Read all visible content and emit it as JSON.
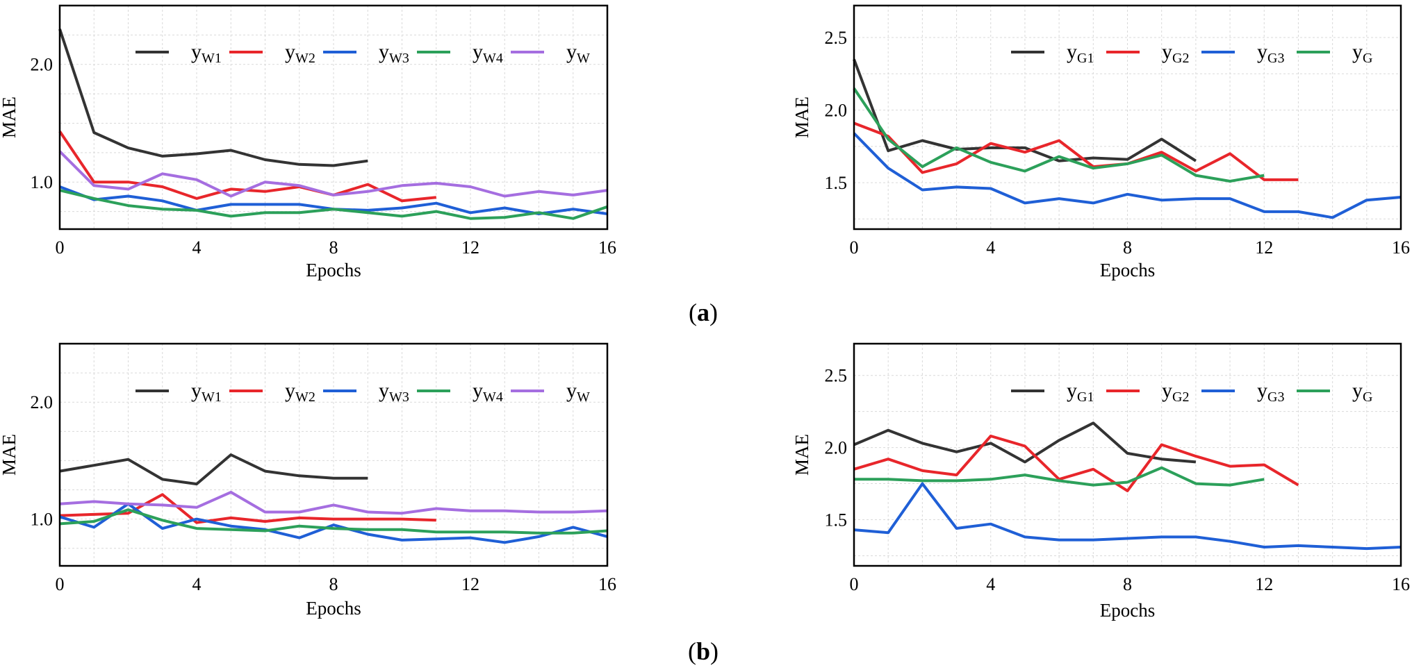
{
  "figure": {
    "label_a": {
      "open": "(",
      "letter": "a",
      "close": ")"
    },
    "label_b": {
      "open": "(",
      "letter": "b",
      "close": ")"
    }
  },
  "colors": {
    "W1": "#333333",
    "W2": "#e8262b",
    "W3": "#1f5fd6",
    "W4": "#2ca05a",
    "W": "#a56ee0",
    "G1": "#333333",
    "G2": "#e8262b",
    "G3": "#1f5fd6",
    "G": "#2ca05a",
    "grid": "#d9d9d9",
    "frame": "#000000"
  },
  "chart_data": [
    {
      "id": "a-left",
      "type": "line",
      "xlabel": "Epochs",
      "ylabel": "MAE",
      "xlim": [
        0,
        16
      ],
      "ylim": [
        0.6,
        2.5
      ],
      "xticks": [
        0,
        4,
        8,
        12,
        16
      ],
      "xtick_labels": [
        "0",
        "4",
        "8",
        "12",
        "16"
      ],
      "yticks": [
        1.0,
        2.0
      ],
      "ytick_labels": [
        "1.0",
        "2.0"
      ],
      "grid": true,
      "legend": "top",
      "series": [
        {
          "key": "W1",
          "name": "y",
          "sub": "W1",
          "values": [
            2.3,
            1.42,
            1.29,
            1.22,
            1.24,
            1.27,
            1.19,
            1.15,
            1.14,
            1.18
          ]
        },
        {
          "key": "W2",
          "name": "y",
          "sub": "W2",
          "values": [
            1.43,
            1.0,
            1.0,
            0.96,
            0.86,
            0.94,
            0.92,
            0.96,
            0.89,
            0.98,
            0.84,
            0.87
          ]
        },
        {
          "key": "W3",
          "name": "y",
          "sub": "W3",
          "values": [
            0.96,
            0.85,
            0.88,
            0.84,
            0.76,
            0.81,
            0.81,
            0.81,
            0.77,
            0.76,
            0.78,
            0.82,
            0.74,
            0.78,
            0.73,
            0.77,
            0.73
          ]
        },
        {
          "key": "W4",
          "name": "y",
          "sub": "W4",
          "values": [
            0.93,
            0.86,
            0.8,
            0.77,
            0.76,
            0.71,
            0.74,
            0.74,
            0.77,
            0.74,
            0.71,
            0.75,
            0.69,
            0.7,
            0.74,
            0.69,
            0.79
          ]
        },
        {
          "key": "W",
          "name": "y",
          "sub": "W",
          "values": [
            1.26,
            0.97,
            0.94,
            1.07,
            1.02,
            0.88,
            1.0,
            0.97,
            0.89,
            0.92,
            0.97,
            0.99,
            0.96,
            0.88,
            0.92,
            0.89,
            0.93
          ]
        }
      ]
    },
    {
      "id": "a-right",
      "type": "line",
      "xlabel": "Epochs",
      "ylabel": "MAE",
      "xlim": [
        0,
        16
      ],
      "ylim": [
        1.18,
        2.72
      ],
      "xticks": [
        0,
        4,
        8,
        12,
        16
      ],
      "xtick_labels": [
        "0",
        "4",
        "8",
        "12",
        "16"
      ],
      "yticks": [
        1.5,
        2.0,
        2.5
      ],
      "ytick_labels": [
        "1.5",
        "2.0",
        "2.5"
      ],
      "grid": true,
      "legend": "top",
      "series": [
        {
          "key": "G1",
          "name": "y",
          "sub": "G1",
          "values": [
            2.35,
            1.72,
            1.79,
            1.73,
            1.74,
            1.74,
            1.65,
            1.67,
            1.66,
            1.8,
            1.65
          ]
        },
        {
          "key": "G2",
          "name": "y",
          "sub": "G2",
          "values": [
            1.91,
            1.82,
            1.57,
            1.63,
            1.77,
            1.71,
            1.79,
            1.61,
            1.63,
            1.71,
            1.58,
            1.7,
            1.52,
            1.52
          ]
        },
        {
          "key": "G3",
          "name": "y",
          "sub": "G3",
          "values": [
            1.84,
            1.6,
            1.45,
            1.47,
            1.46,
            1.36,
            1.39,
            1.36,
            1.42,
            1.38,
            1.39,
            1.39,
            1.3,
            1.3,
            1.26,
            1.38,
            1.4
          ]
        },
        {
          "key": "G",
          "name": "y",
          "sub": "G",
          "values": [
            2.15,
            1.8,
            1.61,
            1.74,
            1.64,
            1.58,
            1.68,
            1.6,
            1.63,
            1.69,
            1.55,
            1.51,
            1.55
          ]
        }
      ]
    },
    {
      "id": "b-left",
      "type": "line",
      "xlabel": "Epochs",
      "ylabel": "MAE",
      "xlim": [
        0,
        16
      ],
      "ylim": [
        0.6,
        2.5
      ],
      "xticks": [
        0,
        4,
        8,
        12,
        16
      ],
      "xtick_labels": [
        "0",
        "4",
        "8",
        "12",
        "16"
      ],
      "yticks": [
        1.0,
        2.0
      ],
      "ytick_labels": [
        "1.0",
        "2.0"
      ],
      "grid": true,
      "legend": "top",
      "series": [
        {
          "key": "W1",
          "name": "y",
          "sub": "W1",
          "values": [
            1.41,
            1.46,
            1.51,
            1.34,
            1.3,
            1.55,
            1.41,
            1.37,
            1.35,
            1.35
          ]
        },
        {
          "key": "W2",
          "name": "y",
          "sub": "W2",
          "values": [
            1.03,
            1.04,
            1.05,
            1.21,
            0.97,
            1.01,
            0.98,
            1.01,
            1.0,
            1.0,
            1.0,
            0.99
          ]
        },
        {
          "key": "W3",
          "name": "y",
          "sub": "W3",
          "values": [
            1.02,
            0.93,
            1.13,
            0.92,
            1.0,
            0.94,
            0.91,
            0.84,
            0.95,
            0.87,
            0.82,
            0.83,
            0.84,
            0.8,
            0.85,
            0.93,
            0.85
          ]
        },
        {
          "key": "W4",
          "name": "y",
          "sub": "W4",
          "values": [
            0.96,
            0.98,
            1.08,
            0.99,
            0.92,
            0.91,
            0.9,
            0.94,
            0.92,
            0.91,
            0.91,
            0.89,
            0.89,
            0.89,
            0.88,
            0.88,
            0.9
          ]
        },
        {
          "key": "W",
          "name": "y",
          "sub": "W",
          "values": [
            1.13,
            1.15,
            1.13,
            1.12,
            1.1,
            1.23,
            1.06,
            1.06,
            1.12,
            1.06,
            1.05,
            1.09,
            1.07,
            1.07,
            1.06,
            1.06,
            1.07
          ]
        }
      ]
    },
    {
      "id": "b-right",
      "type": "line",
      "xlabel": "Epochs",
      "ylabel": "MAE",
      "xlim": [
        0,
        16
      ],
      "ylim": [
        1.18,
        2.72
      ],
      "xticks": [
        0,
        4,
        8,
        12,
        16
      ],
      "xtick_labels": [
        "0",
        "4",
        "8",
        "12",
        "16"
      ],
      "yticks": [
        1.5,
        2.0,
        2.5
      ],
      "ytick_labels": [
        "1.5",
        "2.0",
        "2.5"
      ],
      "grid": true,
      "legend": "top",
      "series": [
        {
          "key": "G1",
          "name": "y",
          "sub": "G1",
          "values": [
            2.02,
            2.12,
            2.03,
            1.97,
            2.03,
            1.9,
            2.05,
            2.17,
            1.96,
            1.92,
            1.9
          ]
        },
        {
          "key": "G2",
          "name": "y",
          "sub": "G2",
          "values": [
            1.85,
            1.92,
            1.84,
            1.81,
            2.08,
            2.01,
            1.78,
            1.85,
            1.7,
            2.02,
            1.94,
            1.87,
            1.88,
            1.74
          ]
        },
        {
          "key": "G3",
          "name": "y",
          "sub": "G3",
          "values": [
            1.43,
            1.41,
            1.75,
            1.44,
            1.47,
            1.38,
            1.36,
            1.36,
            1.37,
            1.38,
            1.38,
            1.35,
            1.31,
            1.32,
            1.31,
            1.3,
            1.31
          ]
        },
        {
          "key": "G",
          "name": "y",
          "sub": "G",
          "values": [
            1.78,
            1.78,
            1.77,
            1.77,
            1.78,
            1.81,
            1.77,
            1.74,
            1.76,
            1.86,
            1.75,
            1.74,
            1.78
          ]
        }
      ]
    }
  ]
}
